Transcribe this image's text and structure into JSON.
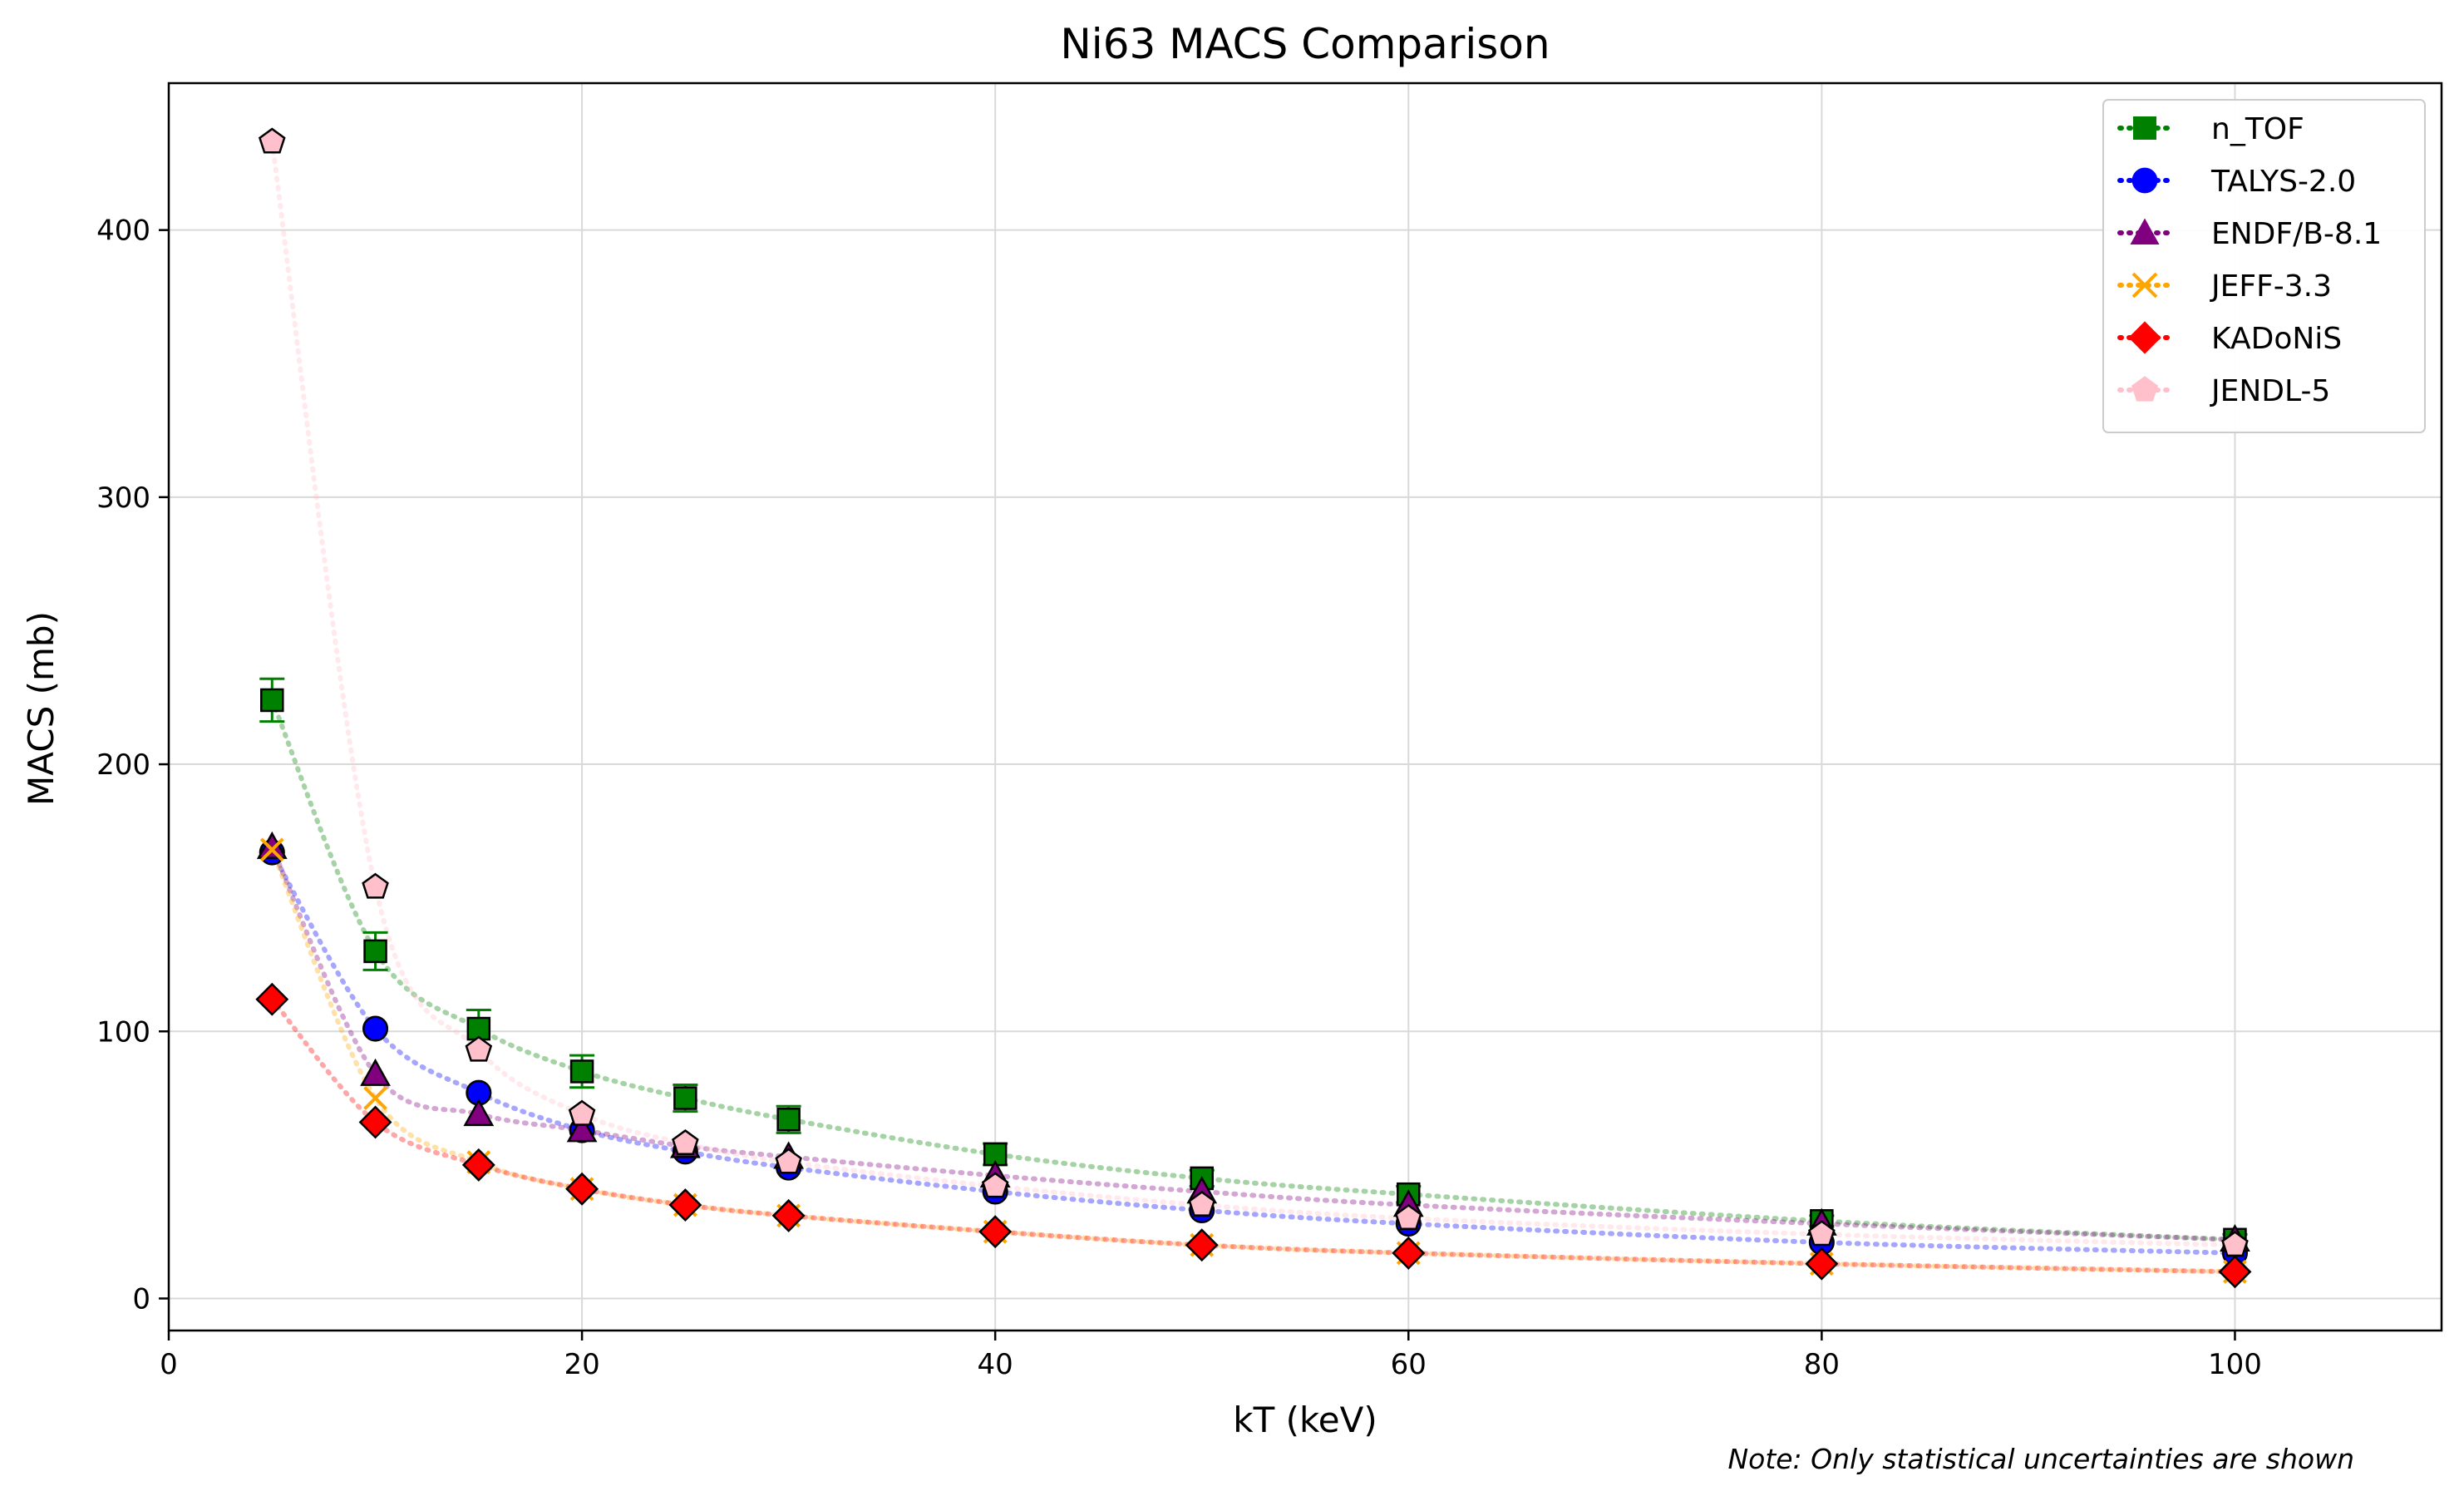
{
  "chart_data": {
    "type": "line",
    "title": "Ni63 MACS Comparison",
    "xlabel": "kT (keV)",
    "ylabel": "MACS (mb)",
    "xlim": [
      0,
      110
    ],
    "ylim": [
      -12,
      455
    ],
    "xticks": [
      0,
      20,
      40,
      60,
      80,
      100
    ],
    "yticks": [
      0,
      100,
      200,
      300,
      400
    ],
    "grid": true,
    "legend_position": "top-right",
    "note": "Note: Only statistical uncertainties are shown",
    "series": [
      {
        "name": "n_TOF",
        "color": "#008000",
        "marker": "square",
        "x": [
          5,
          10,
          15,
          20,
          25,
          30,
          40,
          50,
          60,
          80,
          100
        ],
        "y": [
          224,
          130,
          101,
          85,
          75,
          67,
          54,
          45,
          39,
          29,
          22
        ],
        "err": [
          8,
          7,
          7,
          6,
          5,
          5,
          4,
          3,
          3,
          2,
          2
        ]
      },
      {
        "name": "TALYS-2.0",
        "color": "#0000ff",
        "marker": "circle",
        "x": [
          5,
          10,
          15,
          20,
          25,
          30,
          40,
          50,
          60,
          80,
          100
        ],
        "y": [
          167,
          101,
          77,
          63,
          55,
          49,
          40,
          33,
          28,
          21,
          17
        ]
      },
      {
        "name": "ENDF/B-8.1",
        "color": "#800080",
        "marker": "triangle",
        "x": [
          5,
          10,
          15,
          20,
          25,
          30,
          40,
          50,
          60,
          80,
          100
        ],
        "y": [
          169,
          84,
          69,
          63,
          57,
          53,
          46,
          40,
          35,
          28,
          22
        ]
      },
      {
        "name": "JEFF-3.3",
        "color": "#ffa500",
        "marker": "x",
        "x": [
          5,
          10,
          15,
          20,
          25,
          30,
          40,
          50,
          60,
          80,
          100
        ],
        "y": [
          168,
          75,
          51,
          41,
          35,
          31,
          25,
          20,
          17,
          13,
          10
        ]
      },
      {
        "name": "KADoNiS",
        "color": "#ff0000",
        "marker": "diamond",
        "x": [
          5,
          10,
          15,
          20,
          25,
          30,
          40,
          50,
          60,
          80,
          100
        ],
        "y": [
          112,
          66,
          50,
          41,
          35,
          31,
          25,
          20,
          17,
          13,
          10
        ]
      },
      {
        "name": "JENDL-5",
        "color": "#ffc0cb",
        "marker": "pentagon",
        "x": [
          5,
          10,
          15,
          20,
          25,
          30,
          40,
          50,
          60,
          80,
          100
        ],
        "y": [
          433,
          154,
          93,
          69,
          58,
          51,
          42,
          35,
          30,
          24,
          20
        ]
      }
    ]
  }
}
